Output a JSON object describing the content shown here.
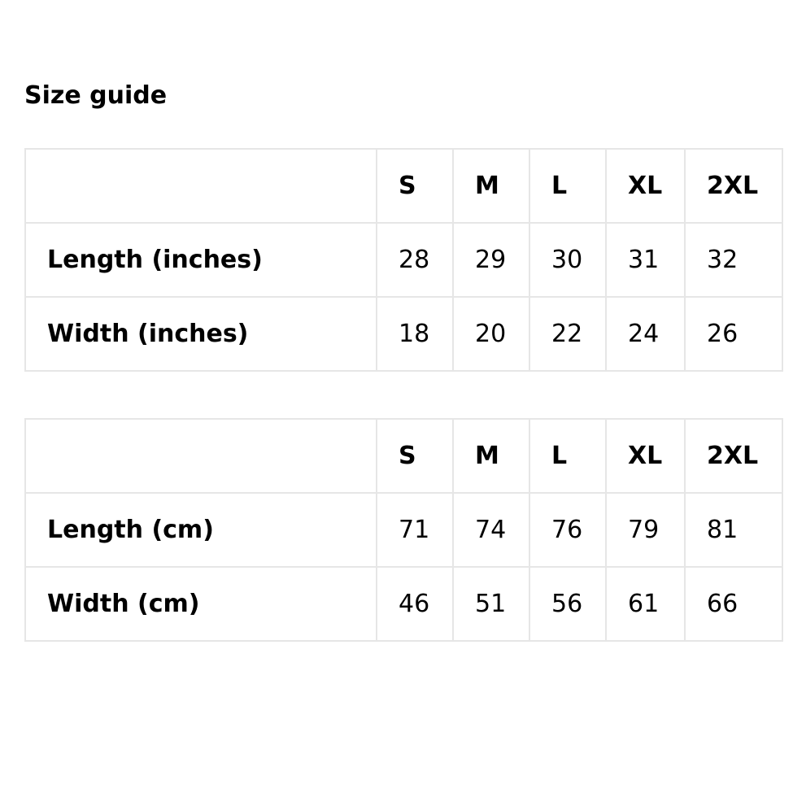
{
  "title": "Size guide",
  "tables": [
    {
      "headers": [
        "",
        "S",
        "M",
        "L",
        "XL",
        "2XL"
      ],
      "rows": [
        {
          "label": "Length (inches)",
          "values": [
            "28",
            "29",
            "30",
            "31",
            "32"
          ]
        },
        {
          "label": "Width (inches)",
          "values": [
            "18",
            "20",
            "22",
            "24",
            "26"
          ]
        }
      ]
    },
    {
      "headers": [
        "",
        "S",
        "M",
        "L",
        "XL",
        "2XL"
      ],
      "rows": [
        {
          "label": "Length (cm)",
          "values": [
            "71",
            "74",
            "76",
            "79",
            "81"
          ]
        },
        {
          "label": "Width (cm)",
          "values": [
            "46",
            "51",
            "56",
            "61",
            "66"
          ]
        }
      ]
    }
  ]
}
